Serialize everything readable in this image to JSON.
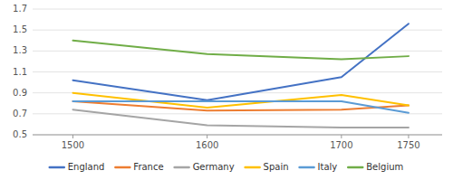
{
  "chart_data": {
    "type": "line",
    "x": [
      1500,
      1600,
      1700,
      1750
    ],
    "series": [
      {
        "name": "England",
        "color": "#4472C4",
        "values": [
          1.02,
          0.83,
          1.05,
          1.56
        ]
      },
      {
        "name": "France",
        "color": "#ED7D31",
        "values": [
          0.82,
          0.73,
          0.74,
          0.78
        ]
      },
      {
        "name": "Germany",
        "color": "#A5A5A5",
        "values": [
          0.74,
          0.59,
          0.57,
          0.57
        ]
      },
      {
        "name": "Spain",
        "color": "#FFC000",
        "values": [
          0.9,
          0.76,
          0.88,
          0.78
        ]
      },
      {
        "name": "Italy",
        "color": "#5B9BD5",
        "values": [
          0.82,
          0.82,
          0.82,
          0.71
        ]
      },
      {
        "name": "Belgium",
        "color": "#70AD47",
        "values": [
          1.4,
          1.27,
          1.22,
          1.25
        ]
      }
    ],
    "xlim": [
      1470,
      1775
    ],
    "xticks": [
      1500,
      1600,
      1700,
      1750
    ],
    "ylim": [
      0.5,
      1.7
    ],
    "yticks": [
      0.5,
      0.7,
      0.9,
      1.1,
      1.3,
      1.5,
      1.7
    ],
    "grid": true,
    "legend": "bottom"
  }
}
